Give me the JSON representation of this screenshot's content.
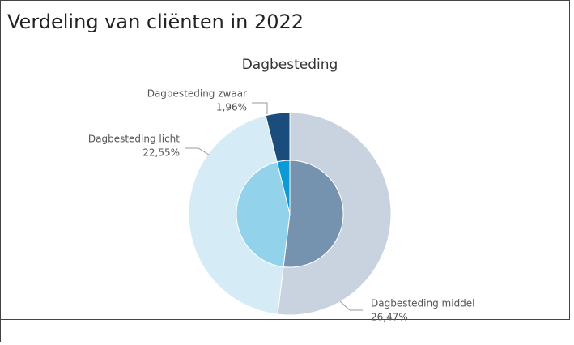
{
  "header": {
    "title": "Verdeling van cliënten in 2022"
  },
  "chart_data": {
    "type": "donut",
    "title": "Dagbesteding",
    "categories": [
      "Dagbesteding middel",
      "Dagbesteding licht",
      "Dagbesteding zwaar"
    ],
    "values": [
      26.47,
      22.55,
      1.96
    ],
    "value_labels": [
      "26,47%",
      "22,55%",
      "1,96%"
    ],
    "colors": [
      "#c8d3df",
      "#d5ebf6",
      "#1b4d7c"
    ],
    "inner_colors": [
      "#7593af",
      "#92d2eb",
      "#0b9ad6"
    ]
  }
}
